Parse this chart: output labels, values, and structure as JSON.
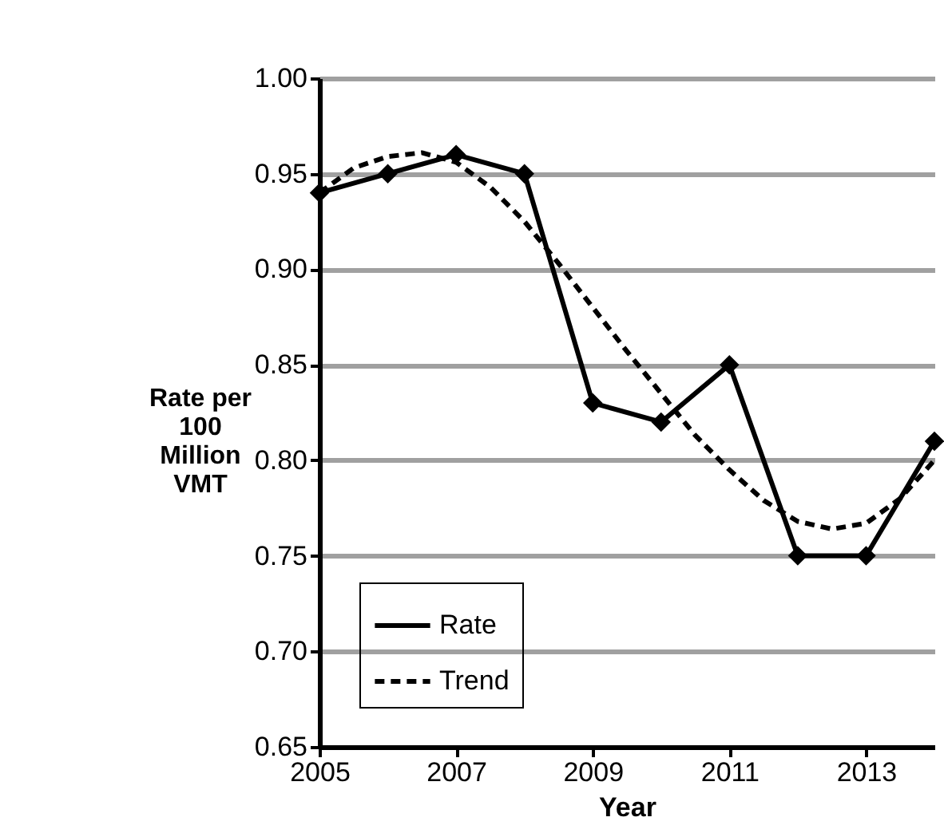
{
  "chart_data": {
    "type": "line",
    "xlabel": "Year",
    "ylabel": "Rate per\n100\nMillion\nVMT",
    "x": [
      2005,
      2006,
      2007,
      2008,
      2009,
      2010,
      2011,
      2012,
      2013,
      2014
    ],
    "series": [
      {
        "name": "Rate",
        "color": "#000000",
        "marker": "diamond",
        "line_style": "solid",
        "values": [
          0.94,
          0.95,
          0.96,
          0.95,
          0.83,
          0.82,
          0.85,
          0.75,
          0.75,
          0.81
        ]
      },
      {
        "name": "Trend",
        "type": "line",
        "color": "#000000",
        "marker": "none",
        "line_style": "dashed",
        "x": [
          2005,
          2005.5,
          2006,
          2006.5,
          2007,
          2007.5,
          2008,
          2008.5,
          2009,
          2009.5,
          2010,
          2010.5,
          2011,
          2011.5,
          2012,
          2012.5,
          2013,
          2013.5,
          2014
        ],
        "values": [
          0.94,
          0.953,
          0.959,
          0.961,
          0.956,
          0.943,
          0.925,
          0.903,
          0.88,
          0.857,
          0.835,
          0.813,
          0.795,
          0.779,
          0.768,
          0.764,
          0.767,
          0.78,
          0.8
        ]
      }
    ],
    "xlim": [
      2005,
      2014
    ],
    "xticks": [
      2005,
      2007,
      2009,
      2011,
      2013
    ],
    "ylim": [
      0.65,
      1.0
    ],
    "yticks": [
      {
        "value": 0.65,
        "label": "0.65"
      },
      {
        "value": 0.7,
        "label": "0.70"
      },
      {
        "value": 0.75,
        "label": "0.75"
      },
      {
        "value": 0.8,
        "label": "0.80"
      },
      {
        "value": 0.85,
        "label": "0.85"
      },
      {
        "value": 0.9,
        "label": "0.90"
      },
      {
        "value": 0.95,
        "label": "0.95"
      },
      {
        "value": 1.0,
        "label": "1.00"
      }
    ],
    "grid": "y",
    "legend": "bottom left"
  }
}
